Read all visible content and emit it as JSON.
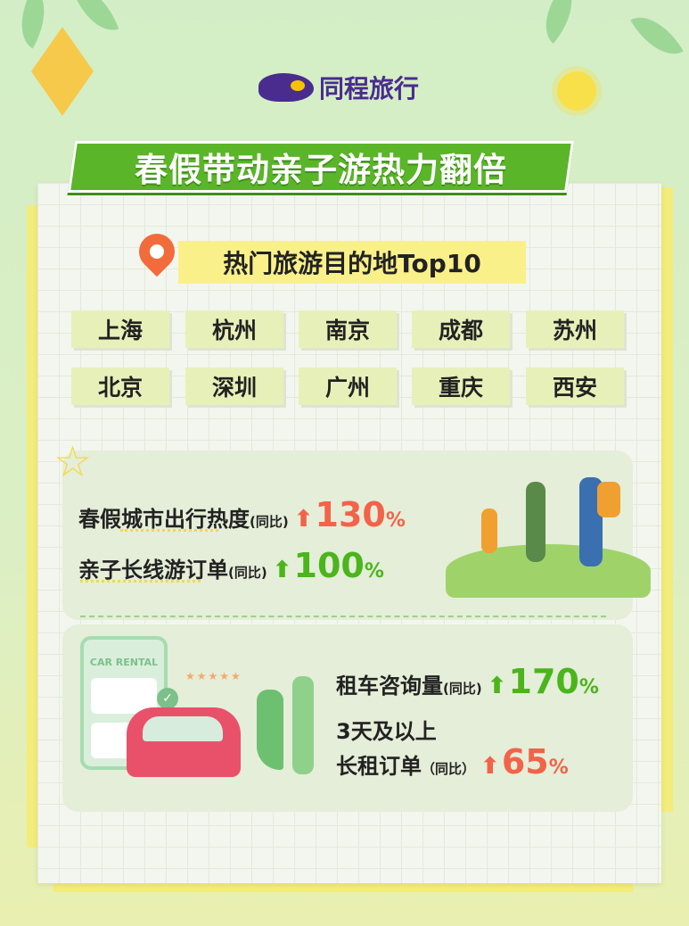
{
  "brand": {
    "logo_text": "同程旅行"
  },
  "title": "春假带动亲子游热力翻倍",
  "subtitle": "热门旅游目的地Top10",
  "cities": [
    "上海",
    "杭州",
    "南京",
    "成都",
    "苏州",
    "北京",
    "深圳",
    "广州",
    "重庆",
    "西安"
  ],
  "stats": [
    {
      "label": "春假城市出行热度",
      "yoy": "(同比)",
      "arrow": "up",
      "value": "130",
      "unit": "%",
      "color": "#f2634a"
    },
    {
      "label": "亲子长线游订单",
      "yoy": "(同比)",
      "arrow": "up",
      "value": "100",
      "unit": "%",
      "color": "#4bb51c"
    },
    {
      "label": "租车咨询量",
      "yoy": "(同比)",
      "arrow": "up",
      "value": "170",
      "unit": "%",
      "color": "#4bb51c"
    },
    {
      "label_line1": "3天及以上",
      "label": "长租订单",
      "yoy": "（同比）",
      "arrow": "up",
      "value": "65",
      "unit": "%",
      "color": "#f2634a"
    }
  ],
  "car_rental_card": {
    "title": "CAR RENTAL"
  },
  "colors": {
    "title_green": "#5ab528",
    "highlight_yellow": "#f9f08a",
    "red": "#f2634a",
    "green": "#4bb51c",
    "brand_purple": "#4a2c8f"
  }
}
